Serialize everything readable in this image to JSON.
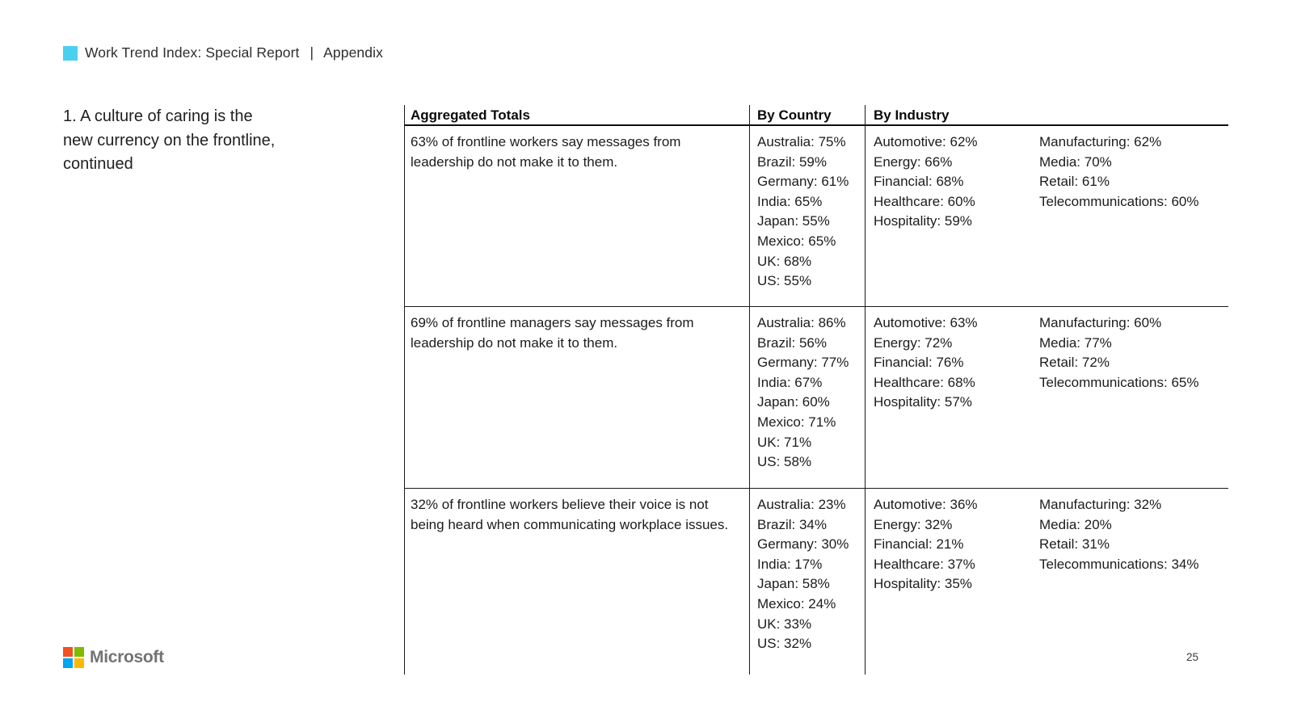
{
  "header": {
    "title": "Work Trend Index: Special Report",
    "separator": "|",
    "section": "Appendix",
    "brand_square_color": "#4ad0ef"
  },
  "sidebar": {
    "title_lines": [
      "1. A culture of caring is the",
      "new currency on the frontline,",
      "continued"
    ]
  },
  "table": {
    "columns": [
      "Aggregated Totals",
      "By Country",
      "By Industry"
    ],
    "rows": [
      {
        "statement": "63% of frontline workers say messages from leadership do not make it to them.",
        "by_country": [
          "Australia: 75%",
          "Brazil: 59%",
          "Germany: 61%",
          "India: 65%",
          "Japan: 55%",
          "Mexico: 65%",
          "UK: 68%",
          "US: 55%"
        ],
        "by_industry_col1": [
          "Automotive: 62%",
          "Energy: 66%",
          "Financial: 68%",
          "Healthcare: 60%",
          "Hospitality: 59%"
        ],
        "by_industry_col2": [
          "Manufacturing: 62%",
          "Media: 70%",
          "Retail: 61%",
          "Telecommunications: 60%"
        ]
      },
      {
        "statement": "69% of frontline managers say messages from leadership do not make it to them.",
        "by_country": [
          "Australia: 86%",
          "Brazil: 56%",
          "Germany: 77%",
          "India: 67%",
          "Japan: 60%",
          "Mexico: 71%",
          "UK: 71%",
          "US: 58%"
        ],
        "by_industry_col1": [
          "Automotive: 63%",
          "Energy: 72%",
          "Financial: 76%",
          "Healthcare: 68%",
          "Hospitality: 57%"
        ],
        "by_industry_col2": [
          "Manufacturing: 60%",
          "Media: 77%",
          "Retail: 72%",
          "Telecommunications: 65%"
        ]
      },
      {
        "statement": "32% of frontline workers believe their voice is not being heard when communicating workplace issues.",
        "by_country": [
          "Australia: 23%",
          "Brazil: 34%",
          "Germany: 30%",
          "India: 17%",
          "Japan: 58%",
          "Mexico: 24%",
          "UK: 33%",
          "US: 32%"
        ],
        "by_industry_col1": [
          "Automotive: 36%",
          "Energy: 32%",
          "Financial: 21%",
          "Healthcare: 37%",
          "Hospitality: 35%"
        ],
        "by_industry_col2": [
          "Manufacturing: 32%",
          "Media: 20%",
          "Retail: 31%",
          "Telecommunications: 34%"
        ]
      }
    ]
  },
  "footer": {
    "logo_text": "Microsoft",
    "logo_colors": {
      "top_left": "#f25022",
      "top_right": "#7fba00",
      "bottom_left": "#00a4ef",
      "bottom_right": "#ffb900"
    },
    "page_number": "25"
  }
}
